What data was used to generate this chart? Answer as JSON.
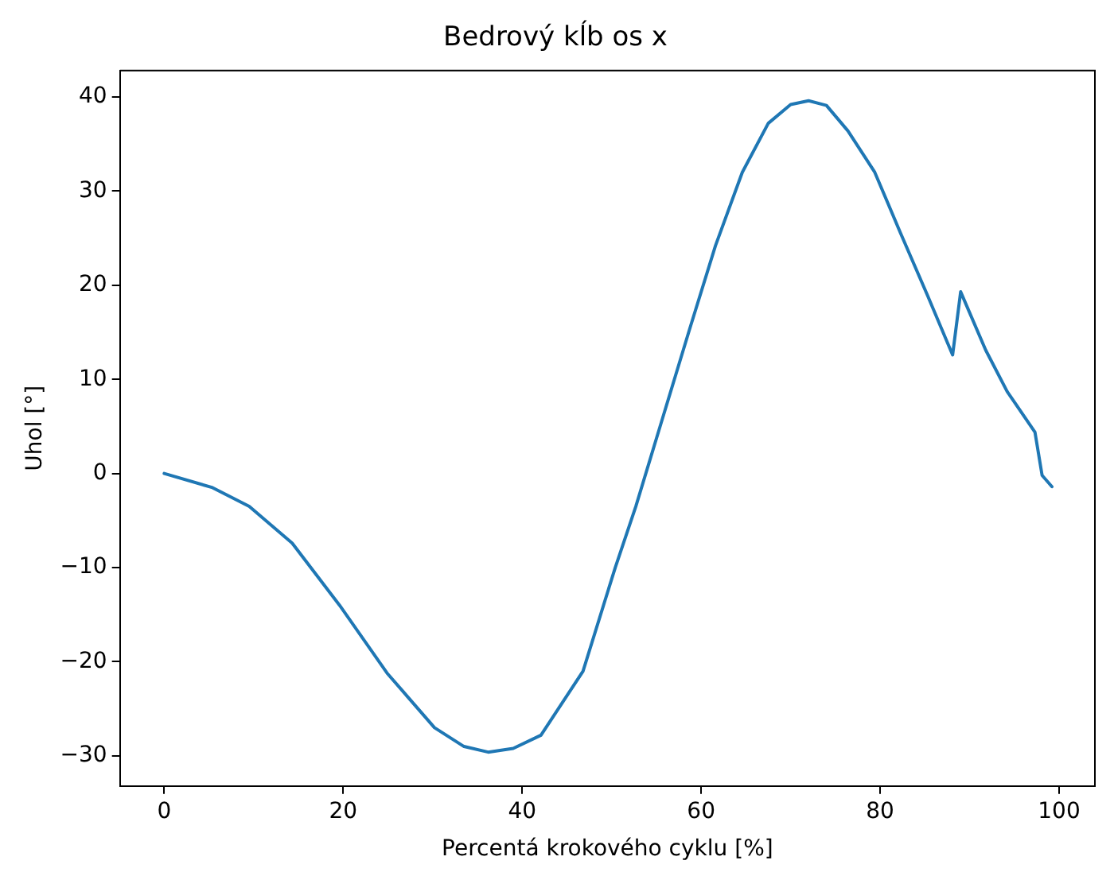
{
  "chart_data": {
    "type": "line",
    "title": "Bedrový kĺb os x",
    "xlabel": "Percentá krokového cyklu [%]",
    "ylabel": "Uhol [°]",
    "x": [
      0,
      5.4,
      9.5,
      14.3,
      19.6,
      24.9,
      30.2,
      33.5,
      36.2,
      39,
      42.1,
      46.8,
      50.4,
      52.7,
      55.7,
      58.7,
      61.6,
      64.6,
      67.5,
      70,
      72,
      74,
      76.4,
      79.4,
      82.3,
      85.3,
      88.1,
      89,
      91.8,
      94.2,
      97.3,
      98.1,
      99.2
    ],
    "series": [
      {
        "color": "#1f77b4",
        "values": [
          0,
          -1.5,
          -3.5,
          -7.4,
          -14,
          -21.2,
          -27,
          -29,
          -29.6,
          -29.2,
          -27.8,
          -21,
          -10,
          -3.5,
          5.9,
          15.3,
          24.2,
          32,
          37.2,
          39.2,
          39.6,
          39.1,
          36.4,
          32,
          25.5,
          18.9,
          12.6,
          19.3,
          13.1,
          8.7,
          4.4,
          -0.2,
          -1.4
        ]
      }
    ],
    "xlim": [
      -4.95,
      104
    ],
    "ylim": [
      -33.2,
      42.8
    ],
    "xticks": [
      0,
      20,
      40,
      60,
      80,
      100
    ],
    "yticks": [
      {
        "value": -30,
        "label": "−30"
      },
      {
        "value": -20,
        "label": "−20"
      },
      {
        "value": -10,
        "label": "−10"
      },
      0,
      10,
      20,
      30,
      40
    ],
    "grid": false,
    "legend": false,
    "marker": "none",
    "line_style": "solid"
  }
}
